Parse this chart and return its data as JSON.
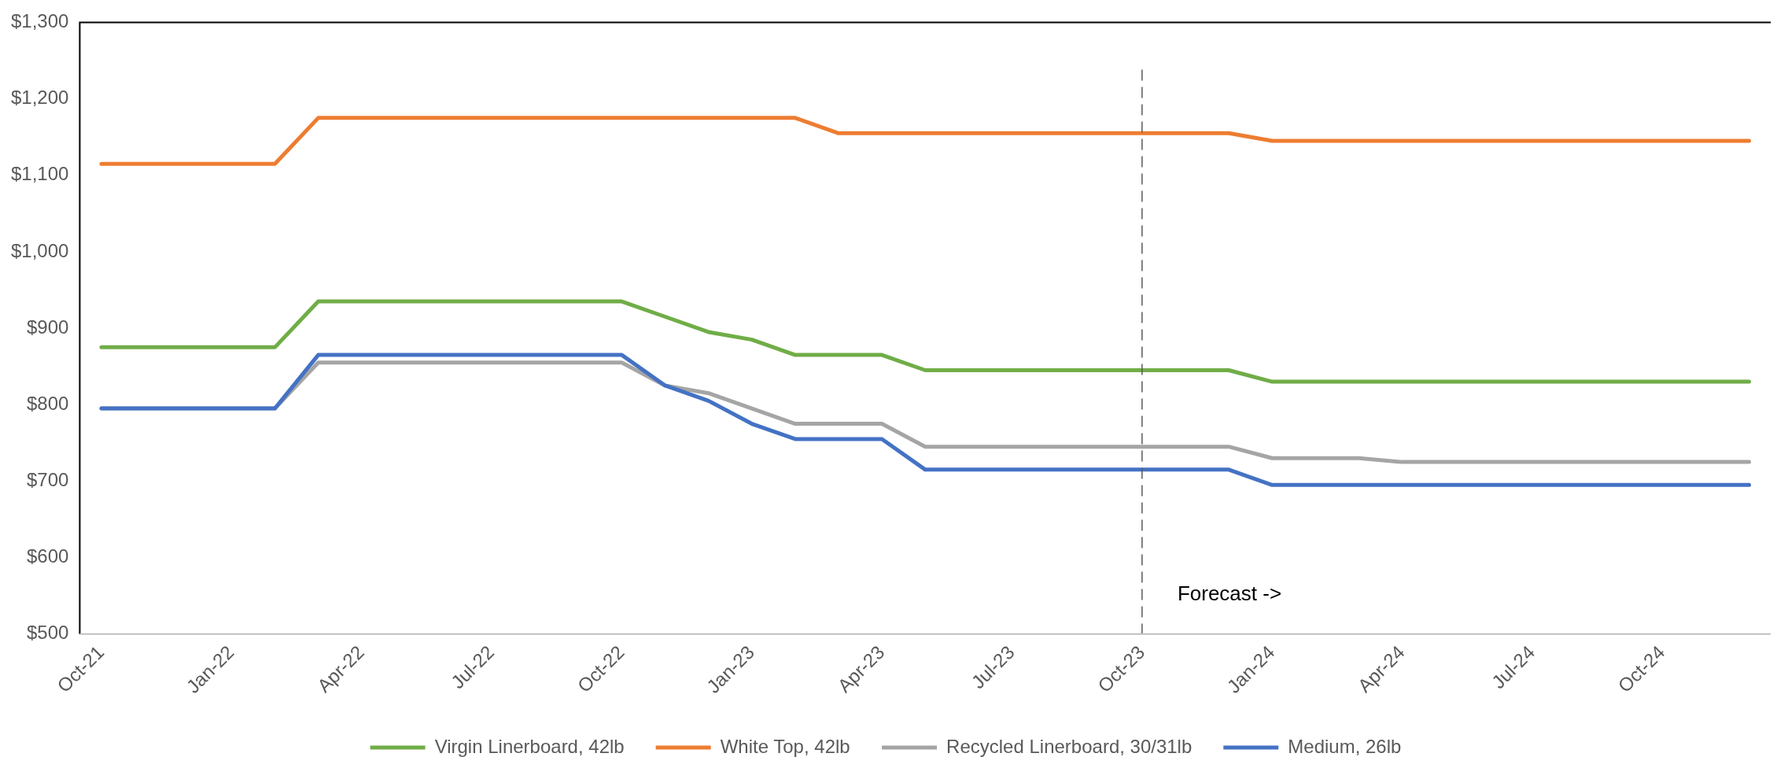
{
  "chart_data": {
    "type": "line",
    "categories": [
      "Oct-21",
      null,
      null,
      "Jan-22",
      null,
      null,
      "Apr-22",
      null,
      null,
      "Jul-22",
      null,
      null,
      "Oct-22",
      null,
      null,
      "Jan-23",
      null,
      null,
      "Apr-23",
      null,
      null,
      "Jul-23",
      null,
      null,
      "Oct-23",
      null,
      null,
      "Jan-24",
      null,
      null,
      "Apr-24",
      null,
      null,
      "Jul-24",
      null,
      null,
      "Oct-24",
      null,
      null
    ],
    "series": [
      {
        "name": "Virgin Linerboard, 42lb",
        "color": "#70ad47",
        "values": [
          875,
          875,
          875,
          875,
          875,
          935,
          935,
          935,
          935,
          935,
          935,
          935,
          935,
          915,
          895,
          885,
          865,
          865,
          865,
          845,
          845,
          845,
          845,
          845,
          845,
          845,
          845,
          830,
          830,
          830,
          830,
          830,
          830,
          830,
          830,
          830,
          830,
          830,
          830
        ]
      },
      {
        "name": "White Top, 42lb",
        "color": "#ed7d31",
        "values": [
          1115,
          1115,
          1115,
          1115,
          1115,
          1175,
          1175,
          1175,
          1175,
          1175,
          1175,
          1175,
          1175,
          1175,
          1175,
          1175,
          1175,
          1155,
          1155,
          1155,
          1155,
          1155,
          1155,
          1155,
          1155,
          1155,
          1155,
          1145,
          1145,
          1145,
          1145,
          1145,
          1145,
          1145,
          1145,
          1145,
          1145,
          1145,
          1145
        ]
      },
      {
        "name": "Recycled Linerboard, 30/31lb",
        "color": "#a5a5a5",
        "values": [
          795,
          795,
          795,
          795,
          795,
          855,
          855,
          855,
          855,
          855,
          855,
          855,
          855,
          825,
          815,
          795,
          775,
          775,
          775,
          745,
          745,
          745,
          745,
          745,
          745,
          745,
          745,
          730,
          730,
          730,
          725,
          725,
          725,
          725,
          725,
          725,
          725,
          725,
          725
        ]
      },
      {
        "name": "Medium, 26lb",
        "color": "#4472c4",
        "values": [
          795,
          795,
          795,
          795,
          795,
          865,
          865,
          865,
          865,
          865,
          865,
          865,
          865,
          825,
          805,
          775,
          755,
          755,
          755,
          715,
          715,
          715,
          715,
          715,
          715,
          715,
          715,
          695,
          695,
          695,
          695,
          695,
          695,
          695,
          695,
          695,
          695,
          695,
          695
        ]
      }
    ],
    "ylim": [
      500,
      1300
    ],
    "yticks": [
      {
        "value": 500,
        "label": "$500"
      },
      {
        "value": 600,
        "label": "$600"
      },
      {
        "value": 700,
        "label": "$700"
      },
      {
        "value": 800,
        "label": "$800"
      },
      {
        "value": 900,
        "label": "$900"
      },
      {
        "value": 1000,
        "label": "$1,000"
      },
      {
        "value": 1100,
        "label": "$1,100"
      },
      {
        "value": 1200,
        "label": "$1,200"
      },
      {
        "value": 1300,
        "label": "$1,300"
      }
    ],
    "grid": false,
    "legend": "bottom",
    "marker": "none",
    "line_style": "solid",
    "ref_lines": [
      {
        "axis": "x",
        "value": "Oct-23",
        "color": "#595959",
        "line_style": "dashed"
      }
    ],
    "annotations": [
      "Forecast ->"
    ]
  }
}
